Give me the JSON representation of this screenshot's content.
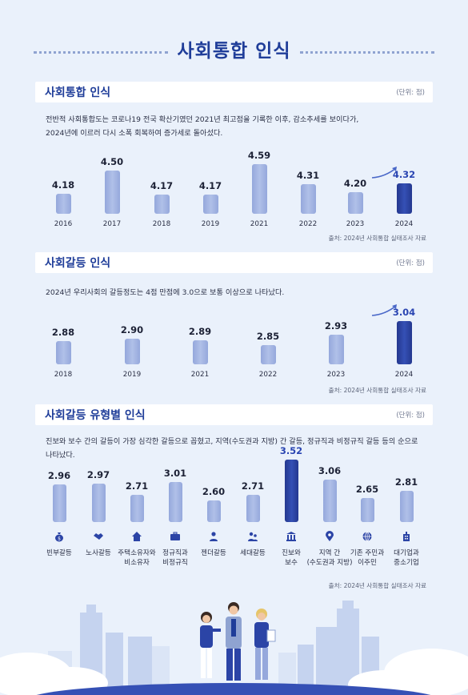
{
  "page": {
    "title": "사회통합 인식"
  },
  "sections": [
    {
      "heading": "사회통합 인식",
      "unit": "(단위: 점)",
      "description_lines": [
        "전반적 사회통합도는 코로나19  전국 확산기였던 2021년 최고점을 기록한 이후, 감소추세를 보이다가,",
        "2024년에 이르러 다시 소폭 회복하여 증가세로 돌아섰다."
      ],
      "source": "출처: 2024년 사회통합 실태조사 자료"
    },
    {
      "heading": "사회갈등 인식",
      "unit": "(단위: 점)",
      "description_lines": [
        "2024년 우리사회의 갈등정도는 4점 만점에 3.0으로 보통 이상으로 나타났다."
      ],
      "source": "출처: 2024년 사회통합 실태조사 자료"
    },
    {
      "heading": "사회갈등 유형별 인식",
      "unit": "(단위: 점)",
      "description_lines": [
        "진보와 보수 간의 갈등이 가장 심각한 갈등으로 꼽혔고, 지역(수도권과 지방) 간 갈등, 정규직과 비정규직 갈등 등의 순으로",
        "나타났다."
      ],
      "source": "출처: 2024년 사회통합 실태조사 자료"
    }
  ],
  "chart_data": [
    {
      "type": "bar",
      "categories": [
        "2016",
        "2017",
        "2018",
        "2019",
        "2021",
        "2022",
        "2023",
        "2024"
      ],
      "values": [
        4.18,
        4.5,
        4.17,
        4.17,
        4.59,
        4.31,
        4.2,
        4.32
      ],
      "value_labels": [
        "4.18",
        "4.50",
        "4.17",
        "4.17",
        "4.59",
        "4.31",
        "4.20",
        "4.32"
      ],
      "highlight_index": 7,
      "title": "사회통합 인식",
      "colors": {
        "bar": "#a3b4e2",
        "highlight": "#2b44a6"
      }
    },
    {
      "type": "bar",
      "categories": [
        "2018",
        "2019",
        "2021",
        "2022",
        "2023",
        "2024"
      ],
      "values": [
        2.88,
        2.9,
        2.89,
        2.85,
        2.93,
        3.04
      ],
      "value_labels": [
        "2.88",
        "2.90",
        "2.89",
        "2.85",
        "2.93",
        "3.04"
      ],
      "highlight_index": 5,
      "title": "사회갈등 인식",
      "colors": {
        "bar": "#a3b4e2",
        "highlight": "#2b44a6"
      }
    },
    {
      "type": "bar",
      "categories": [
        [
          "빈부갈등"
        ],
        [
          "노사갈등"
        ],
        [
          "주택소유자와",
          "비소유자"
        ],
        [
          "정규직과",
          "비정규직"
        ],
        [
          "젠더갈등"
        ],
        [
          "세대갈등"
        ],
        [
          "진보와",
          "보수"
        ],
        [
          "지역 간",
          "(수도권과 지방)"
        ],
        [
          "기존 주민과",
          "이주민"
        ],
        [
          "대기업과",
          "중소기업"
        ]
      ],
      "values": [
        2.96,
        2.97,
        2.71,
        3.01,
        2.6,
        2.71,
        3.52,
        3.06,
        2.65,
        2.81
      ],
      "value_labels": [
        "2.96",
        "2.97",
        "2.71",
        "3.01",
        "2.60",
        "2.71",
        "3.52",
        "3.06",
        "2.65",
        "2.81"
      ],
      "highlight_index": 6,
      "icons": [
        "money-bag-icon",
        "handshake-icon",
        "house-icon",
        "briefcase-icon",
        "person-icon",
        "family-icon",
        "institution-icon",
        "location-pin-icon",
        "globe-icon",
        "building-icon"
      ],
      "title": "사회갈등 유형별 인식",
      "colors": {
        "bar": "#a3b4e2",
        "highlight": "#2b44a6"
      }
    }
  ]
}
